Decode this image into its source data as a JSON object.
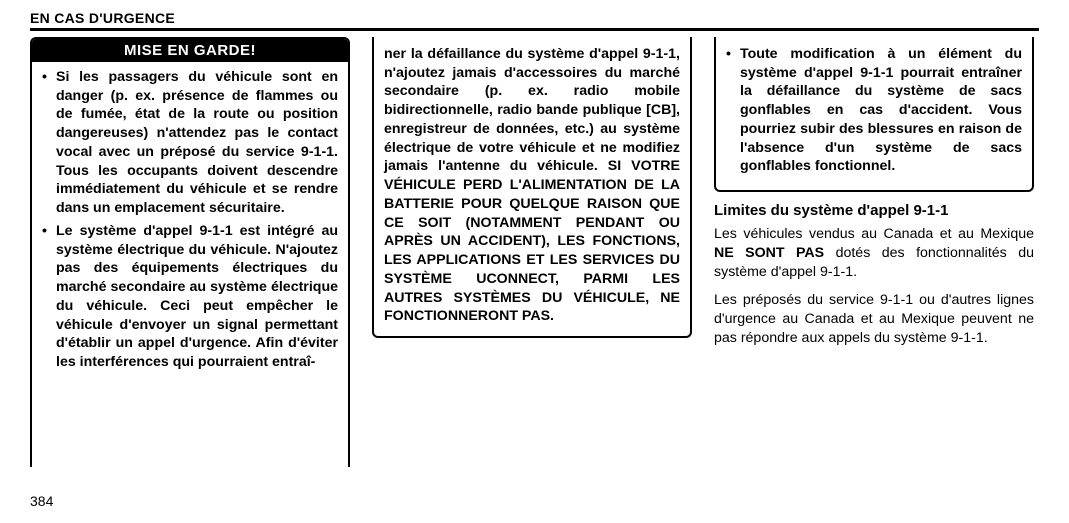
{
  "header": {
    "section": "EN CAS D'URGENCE"
  },
  "col1": {
    "warn_title": "MISE EN GARDE!",
    "bullets": [
      "Si les passagers du véhicule sont en danger (p. ex. présence de flammes ou de fumée, état de la route ou position dangereuses) n'attendez pas le contact vocal avec un préposé du service 9-1-1. Tous les occupants doivent descendre immédiatement du véhicule et se rendre dans un emplacement sécuritaire.",
      "Le système d'appel 9-1-1 est intégré au système électrique du véhicule. N'ajoutez pas des équipements électriques du marché secondaire au système électrique du véhicule. Ceci peut empêcher le véhicule d'envoyer un signal permettant d'établir un appel d'urgence. Afin d'éviter les interférences qui pourraient entraî-"
    ]
  },
  "col2": {
    "continuation": "ner la défaillance du système d'appel 9-1-1, n'ajoutez jamais d'accessoires du marché secondaire (p. ex. radio mobile bidirectionnelle, radio bande publique [CB], enregistreur de données, etc.) au système électrique de votre véhicule et ne modifiez jamais l'antenne du véhicule. SI VOTRE VÉHICULE PERD L'ALIMENTATION DE LA BATTERIE POUR QUELQUE RAISON QUE CE SOIT (NOTAMMENT PENDANT OU APRÈS UN ACCIDENT), LES FONCTIONS, LES APPLICATIONS ET LES SERVICES DU SYSTÈME UCONNECT, PARMI LES AUTRES SYSTÈMES DU VÉHICULE, NE FONCTIONNERONT PAS."
  },
  "col3": {
    "bullets": [
      "Toute modification à un élément du système d'appel 9-1-1 pourrait entraîner la défaillance du système de sacs gonflables en cas d'accident. Vous pourriez subir des blessures en raison de l'absence d'un système de sacs gonflables fonctionnel."
    ],
    "subhead": "Limites du système d'appel 9-1-1",
    "p1_a": "Les véhicules vendus au Canada et au Mexique ",
    "p1_b": "NE SONT PAS",
    "p1_c": " dotés des fonctionnalités du système d'appel 9-1-1.",
    "p2": "Les préposés du service 9-1-1 ou d'autres lignes d'urgence au Canada et au Mexique peuvent ne pas répondre aux appels du système 9-1-1."
  },
  "pagenum": "384"
}
